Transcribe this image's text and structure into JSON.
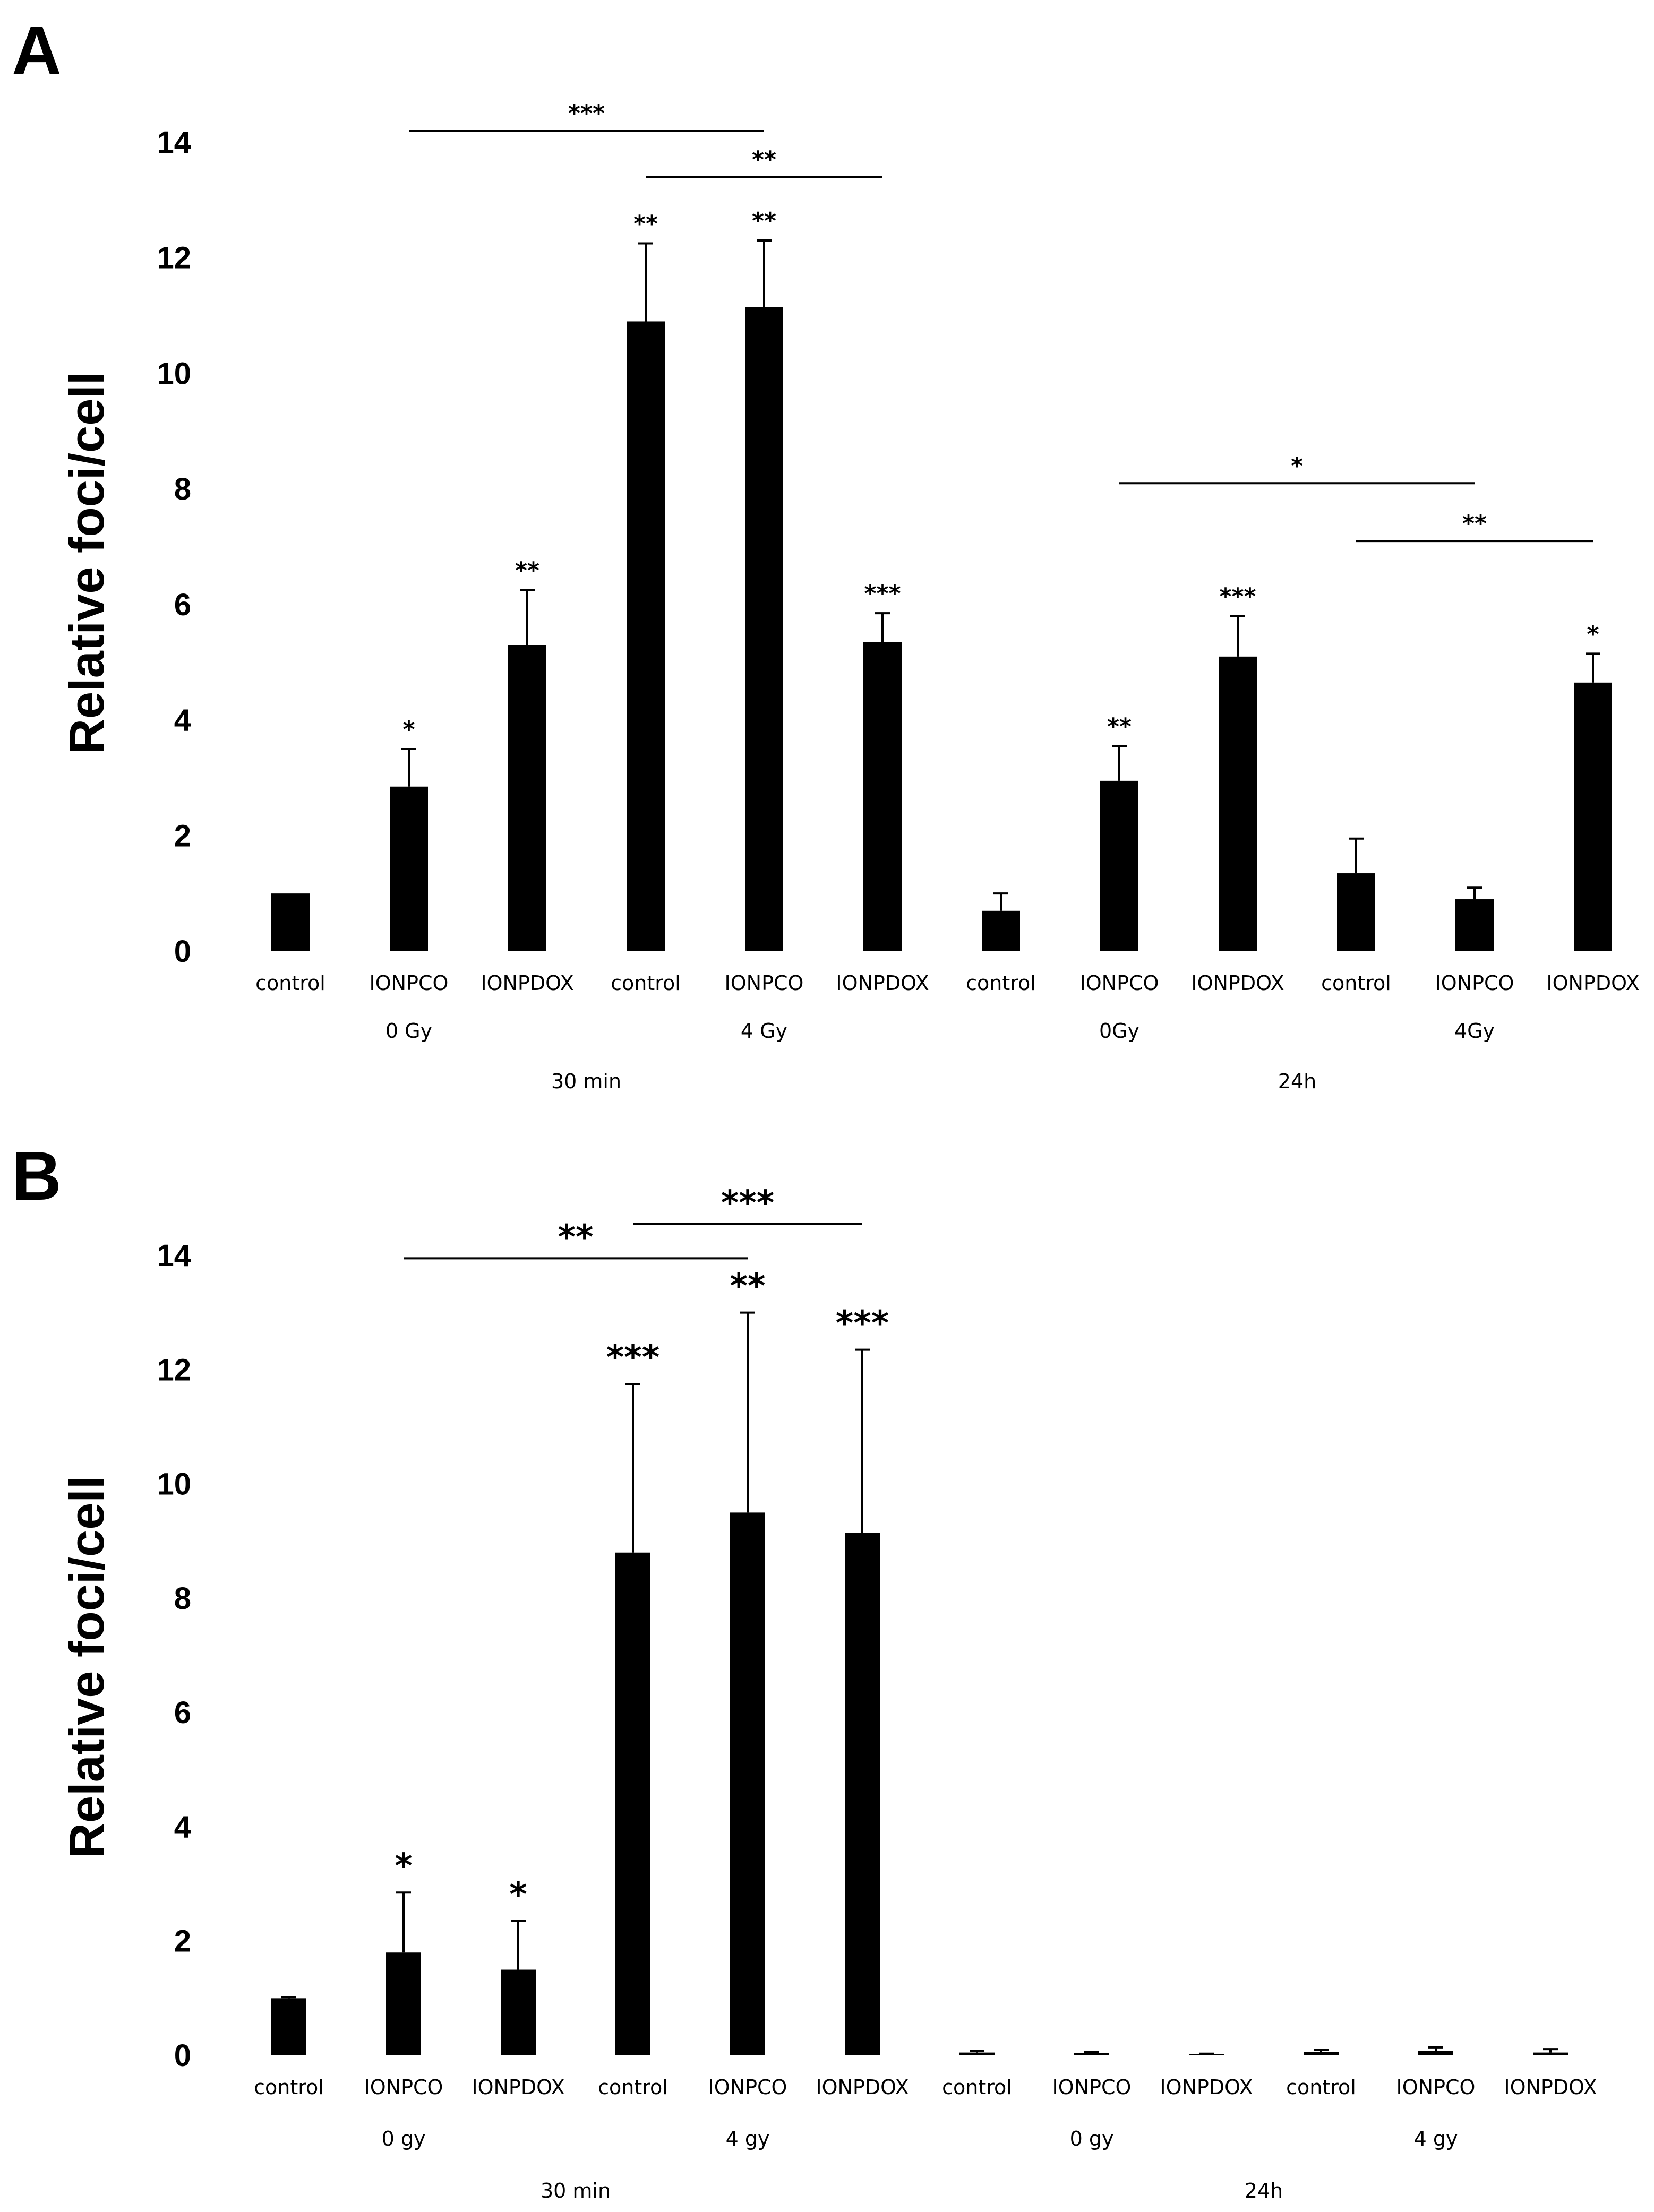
{
  "chart_data": [
    {
      "type": "bar",
      "panel": "A",
      "ylabel": "Relative foci/cell",
      "ylim": [
        0,
        14
      ],
      "yticks": [
        "0",
        "2",
        "4",
        "6",
        "8",
        "10",
        "12",
        "14"
      ],
      "categories": [
        "control",
        "IONPCO",
        "IONPDOX",
        "control",
        "IONPCO",
        "IONPDOX",
        "control",
        "IONPCO",
        "IONPDOX",
        "control",
        "IONPCO",
        "IONPDOX"
      ],
      "values": [
        1.0,
        2.85,
        5.3,
        10.9,
        11.15,
        5.35,
        0.7,
        2.95,
        5.1,
        1.35,
        0.9,
        4.65
      ],
      "errors": [
        0.0,
        0.65,
        0.95,
        1.35,
        1.15,
        0.5,
        0.3,
        0.6,
        0.7,
        0.6,
        0.2,
        0.5
      ],
      "significance": [
        "",
        "*",
        "**",
        "**",
        "**",
        "***",
        "",
        "**",
        "***",
        "",
        "",
        "*"
      ],
      "dose_labels": [
        "0 Gy",
        "4 Gy",
        "0Gy",
        "4Gy"
      ],
      "time_labels": [
        "30 min",
        "24h"
      ],
      "brackets": [
        {
          "from": 1,
          "to": 4,
          "level": 14.2,
          "label": "***"
        },
        {
          "from": 3,
          "to": 5,
          "level": 13.4,
          "label": "**"
        },
        {
          "from": 7,
          "to": 10,
          "level": 8.1,
          "label": "*"
        },
        {
          "from": 9,
          "to": 11,
          "level": 7.1,
          "label": "**"
        }
      ]
    },
    {
      "type": "bar",
      "panel": "B",
      "ylabel": "Relative foci/cell",
      "ylim": [
        0,
        14
      ],
      "yticks": [
        "0",
        "2",
        "4",
        "6",
        "8",
        "10",
        "12",
        "14"
      ],
      "categories": [
        "control",
        "IONPCO",
        "IONPDOX",
        "control",
        "IONPCO",
        "IONPDOX",
        "control",
        "IONPCO",
        "IONPDOX",
        "control",
        "IONPCO",
        "IONPDOX"
      ],
      "values": [
        1.0,
        1.8,
        1.5,
        8.8,
        9.5,
        9.15,
        0.05,
        0.04,
        0.02,
        0.06,
        0.08,
        0.05
      ],
      "errors": [
        0.02,
        1.05,
        0.85,
        2.95,
        3.5,
        3.2,
        0.03,
        0.02,
        0.01,
        0.04,
        0.06,
        0.06
      ],
      "significance": [
        "",
        "*",
        "*",
        "***",
        "**",
        "***",
        "",
        "",
        "",
        "",
        "",
        ""
      ],
      "dose_labels": [
        "0 gy",
        "4 gy",
        "0 gy",
        "4 gy"
      ],
      "time_labels": [
        "30 min",
        "24h"
      ],
      "brackets": [
        {
          "from": 3,
          "to": 5,
          "level": 14.55,
          "label": "***"
        },
        {
          "from": 1,
          "to": 4,
          "level": 13.95,
          "label": "**"
        }
      ]
    }
  ]
}
